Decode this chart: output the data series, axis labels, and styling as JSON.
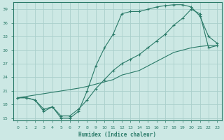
{
  "title": "",
  "xlabel": "Humidex (Indice chaleur)",
  "ylabel": "",
  "bg_color": "#cce8e4",
  "grid_color": "#aacfcb",
  "line_color": "#2a7a68",
  "xlim": [
    -0.5,
    23.5
  ],
  "ylim": [
    14.5,
    40.5
  ],
  "yticks": [
    15,
    18,
    21,
    24,
    27,
    30,
    33,
    36,
    39
  ],
  "xticks": [
    0,
    1,
    2,
    3,
    4,
    5,
    6,
    7,
    8,
    9,
    10,
    11,
    12,
    13,
    14,
    15,
    16,
    17,
    18,
    19,
    20,
    21,
    22,
    23
  ],
  "line1_x": [
    0,
    1,
    2,
    3,
    4,
    5,
    6,
    7,
    8,
    9,
    10,
    11,
    12,
    13,
    14,
    15,
    16,
    17,
    18,
    19,
    20,
    21,
    22,
    23
  ],
  "line1_y": [
    19.5,
    19.5,
    19.0,
    16.5,
    17.5,
    15.0,
    15.0,
    16.5,
    21.0,
    26.5,
    30.5,
    33.5,
    38.0,
    38.5,
    38.5,
    39.0,
    39.5,
    39.8,
    40.0,
    40.0,
    39.5,
    37.5,
    33.0,
    31.5
  ],
  "line2_x": [
    0,
    1,
    2,
    3,
    4,
    5,
    6,
    7,
    8,
    9,
    10,
    11,
    12,
    13,
    14,
    15,
    16,
    17,
    18,
    19,
    20,
    21,
    22,
    23
  ],
  "line2_y": [
    19.5,
    19.5,
    19.0,
    17.0,
    17.5,
    15.5,
    15.5,
    17.0,
    19.0,
    21.5,
    23.5,
    25.5,
    27.0,
    28.0,
    29.0,
    30.5,
    32.0,
    33.5,
    35.5,
    37.0,
    39.0,
    38.0,
    30.5,
    31.0
  ],
  "line3_x": [
    0,
    1,
    2,
    3,
    4,
    5,
    6,
    7,
    8,
    9,
    10,
    11,
    12,
    13,
    14,
    15,
    16,
    17,
    18,
    19,
    20,
    21,
    22,
    23
  ],
  "line3_y": [
    19.5,
    19.8,
    20.1,
    20.4,
    20.7,
    21.0,
    21.3,
    21.6,
    22.0,
    22.5,
    23.0,
    23.5,
    24.5,
    25.0,
    25.5,
    26.5,
    27.5,
    28.5,
    29.5,
    30.0,
    30.5,
    30.8,
    31.0,
    31.0
  ]
}
